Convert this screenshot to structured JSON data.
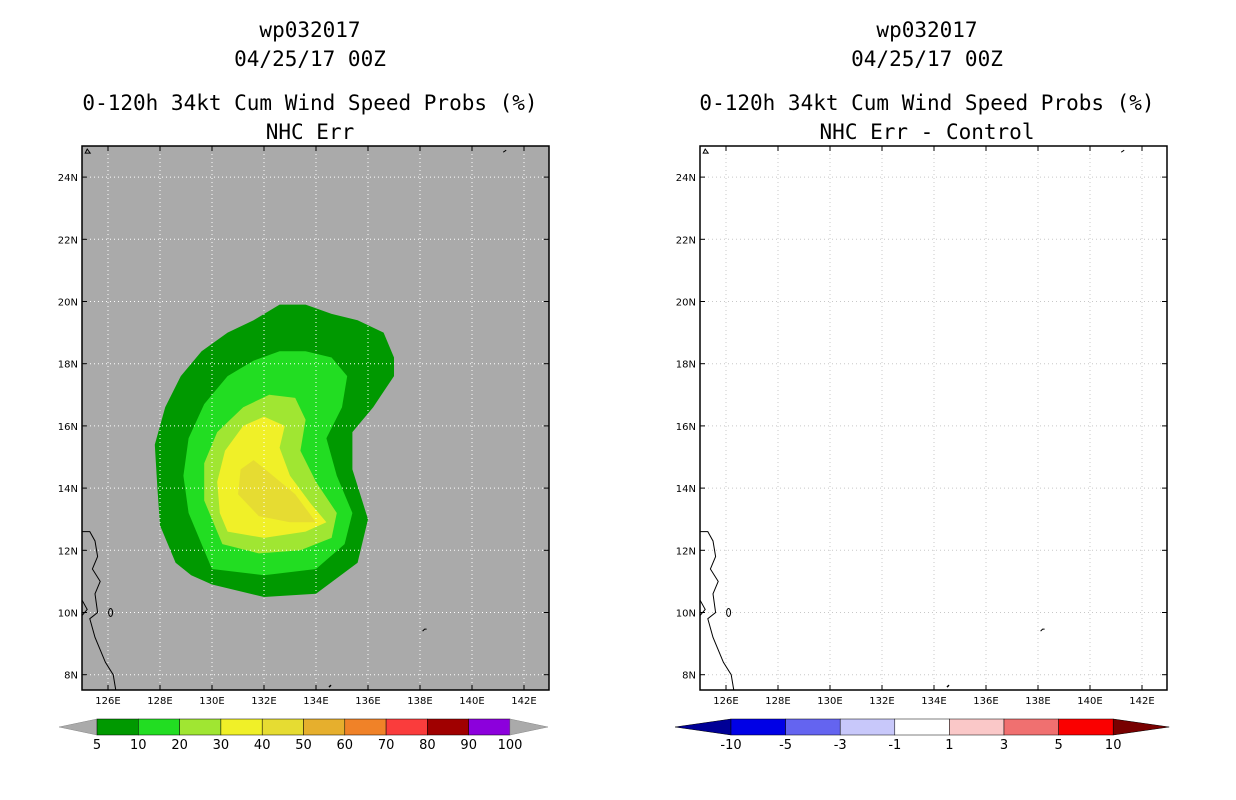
{
  "left_panel": {
    "storm_id": "wp032017",
    "datetime": "04/25/17 00Z",
    "product": "0-120h 34kt Cum Wind Speed Probs (%)",
    "subtitle": "NHC Err"
  },
  "right_panel": {
    "storm_id": "wp032017",
    "datetime": "04/25/17 00Z",
    "product": "0-120h 34kt Cum Wind Speed Probs (%)",
    "subtitle": "NHC Err - Control"
  },
  "map": {
    "lon_labels": [
      "126E",
      "128E",
      "130E",
      "132E",
      "134E",
      "136E",
      "138E",
      "140E",
      "142E"
    ],
    "lat_labels": [
      "8N",
      "10N",
      "12N",
      "14N",
      "16N",
      "18N",
      "20N",
      "22N",
      "24N"
    ],
    "lon_values": [
      126,
      128,
      130,
      132,
      134,
      136,
      138,
      140,
      142
    ],
    "lat_values": [
      8,
      10,
      12,
      14,
      16,
      18,
      20,
      22,
      24
    ],
    "lon_range": [
      125.0,
      143.0
    ],
    "lat_range": [
      7.5,
      25.0
    ],
    "background": "#aaaaaa"
  },
  "left_legend": {
    "labels": [
      "5",
      "10",
      "20",
      "30",
      "40",
      "50",
      "60",
      "70",
      "80",
      "90",
      "100"
    ],
    "colors": [
      "#009900",
      "#22dd22",
      "#a0e632",
      "#f0f028",
      "#e6dc32",
      "#e6af2d",
      "#f08228",
      "#fa3c3c",
      "#a00000",
      "#8c00dc"
    ],
    "end_color": "#aaaaaa"
  },
  "right_legend": {
    "labels": [
      "-10",
      "-5",
      "-3",
      "-1",
      "1",
      "3",
      "5",
      "10"
    ],
    "colors": [
      "#0000e6",
      "#6464f0",
      "#c8c8fa",
      "#ffffff",
      "#fac8c8",
      "#f07070",
      "#fa0000"
    ],
    "low_color": "#000096",
    "high_color": "#780000"
  },
  "contours": [
    {
      "level": "5",
      "color": "#009900",
      "points": [
        [
          130,
          10.9
        ],
        [
          132,
          10.5
        ],
        [
          134,
          10.6
        ],
        [
          135.6,
          11.6
        ],
        [
          136,
          13
        ],
        [
          135.4,
          14.6
        ],
        [
          135.4,
          15.8
        ],
        [
          136.2,
          16.6
        ],
        [
          137.0,
          17.6
        ],
        [
          137.0,
          18.2
        ],
        [
          136.6,
          19.0
        ],
        [
          135.6,
          19.4
        ],
        [
          134.6,
          19.6
        ],
        [
          133.6,
          19.9
        ],
        [
          132.6,
          19.9
        ],
        [
          131.6,
          19.4
        ],
        [
          130.6,
          19.0
        ],
        [
          129.6,
          18.4
        ],
        [
          128.8,
          17.6
        ],
        [
          128.2,
          16.6
        ],
        [
          127.8,
          15.4
        ],
        [
          127.9,
          14.0
        ],
        [
          128.0,
          12.8
        ],
        [
          128.6,
          11.6
        ],
        [
          129.2,
          11.2
        ]
      ]
    },
    {
      "level": "10",
      "color": "#22dd22",
      "points": [
        [
          130,
          11.4
        ],
        [
          132,
          11.2
        ],
        [
          134,
          11.4
        ],
        [
          135.1,
          12.2
        ],
        [
          135.4,
          13.2
        ],
        [
          134.8,
          14.4
        ],
        [
          134.4,
          15.6
        ],
        [
          135.0,
          16.6
        ],
        [
          135.2,
          17.6
        ],
        [
          134.6,
          18.2
        ],
        [
          133.6,
          18.4
        ],
        [
          132.6,
          18.4
        ],
        [
          131.6,
          18.1
        ],
        [
          130.6,
          17.6
        ],
        [
          129.7,
          16.7
        ],
        [
          129.1,
          15.6
        ],
        [
          128.9,
          14.4
        ],
        [
          129.1,
          13.2
        ],
        [
          129.6,
          12.2
        ]
      ]
    },
    {
      "level": "20",
      "color": "#a0e632",
      "points": [
        [
          130.4,
          12.2
        ],
        [
          131.8,
          11.9
        ],
        [
          133.4,
          12.0
        ],
        [
          134.6,
          12.4
        ],
        [
          134.8,
          13.2
        ],
        [
          134.0,
          14.2
        ],
        [
          133.4,
          15.2
        ],
        [
          133.6,
          16.2
        ],
        [
          133.2,
          16.9
        ],
        [
          132.2,
          17.0
        ],
        [
          131.2,
          16.6
        ],
        [
          130.2,
          15.8
        ],
        [
          129.7,
          14.8
        ],
        [
          129.7,
          13.6
        ]
      ]
    },
    {
      "level": "30",
      "color": "#f0f028",
      "points": [
        [
          130.6,
          12.6
        ],
        [
          132,
          12.4
        ],
        [
          133.6,
          12.6
        ],
        [
          134.4,
          12.9
        ],
        [
          133.8,
          13.5
        ],
        [
          133.0,
          14.4
        ],
        [
          132.6,
          15.3
        ],
        [
          132.8,
          16.0
        ],
        [
          132.0,
          16.3
        ],
        [
          131.2,
          16.0
        ],
        [
          130.5,
          15.2
        ],
        [
          130.2,
          14.2
        ],
        [
          130.3,
          13.2
        ]
      ]
    },
    {
      "level": "40",
      "color": "#e6dc32",
      "points": [
        [
          131.0,
          13.8
        ],
        [
          131.8,
          13.1
        ],
        [
          133.0,
          12.9
        ],
        [
          134.0,
          12.9
        ],
        [
          133.2,
          13.8
        ],
        [
          132.2,
          14.5
        ],
        [
          131.6,
          14.9
        ],
        [
          131.1,
          14.6
        ]
      ]
    }
  ]
}
